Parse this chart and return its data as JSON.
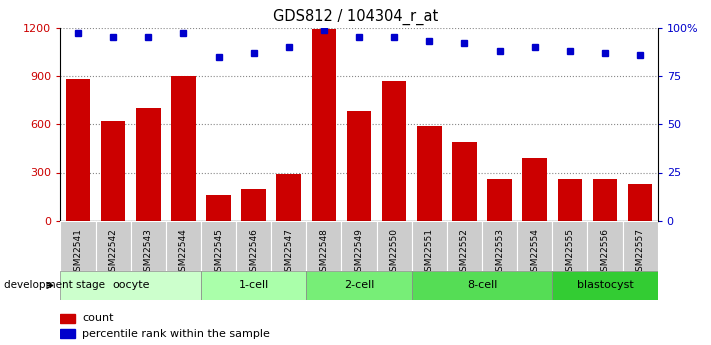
{
  "title": "GDS812 / 104304_r_at",
  "samples": [
    "GSM22541",
    "GSM22542",
    "GSM22543",
    "GSM22544",
    "GSM22545",
    "GSM22546",
    "GSM22547",
    "GSM22548",
    "GSM22549",
    "GSM22550",
    "GSM22551",
    "GSM22552",
    "GSM22553",
    "GSM22554",
    "GSM22555",
    "GSM22556",
    "GSM22557"
  ],
  "counts": [
    880,
    620,
    700,
    900,
    160,
    200,
    290,
    1190,
    680,
    870,
    590,
    490,
    260,
    390,
    260,
    260,
    230
  ],
  "percentiles": [
    97,
    95,
    95,
    97,
    85,
    87,
    90,
    99,
    95,
    95,
    93,
    92,
    88,
    90,
    88,
    87,
    86
  ],
  "bar_color": "#cc0000",
  "dot_color": "#0000cc",
  "ylim_left": [
    0,
    1200
  ],
  "ylim_right": [
    0,
    100
  ],
  "yticks_left": [
    0,
    300,
    600,
    900,
    1200
  ],
  "ytick_labels_left": [
    "0",
    "300",
    "600",
    "900",
    "1200"
  ],
  "yticks_right": [
    0,
    25,
    50,
    75,
    100
  ],
  "ytick_labels_right": [
    "0",
    "25",
    "50",
    "75",
    "100%"
  ],
  "stages": [
    {
      "label": "oocyte",
      "indices": [
        0,
        1,
        2,
        3
      ],
      "color": "#ccffcc"
    },
    {
      "label": "1-cell",
      "indices": [
        4,
        5,
        6
      ],
      "color": "#aaffaa"
    },
    {
      "label": "2-cell",
      "indices": [
        7,
        8,
        9
      ],
      "color": "#77ee77"
    },
    {
      "label": "8-cell",
      "indices": [
        10,
        11,
        12,
        13
      ],
      "color": "#55dd55"
    },
    {
      "label": "blastocyst",
      "indices": [
        14,
        15,
        16
      ],
      "color": "#33cc33"
    }
  ],
  "tick_label_color_left": "#cc0000",
  "tick_label_color_right": "#0000cc",
  "grid_color": "#888888",
  "xticklabel_bg": "#cccccc"
}
